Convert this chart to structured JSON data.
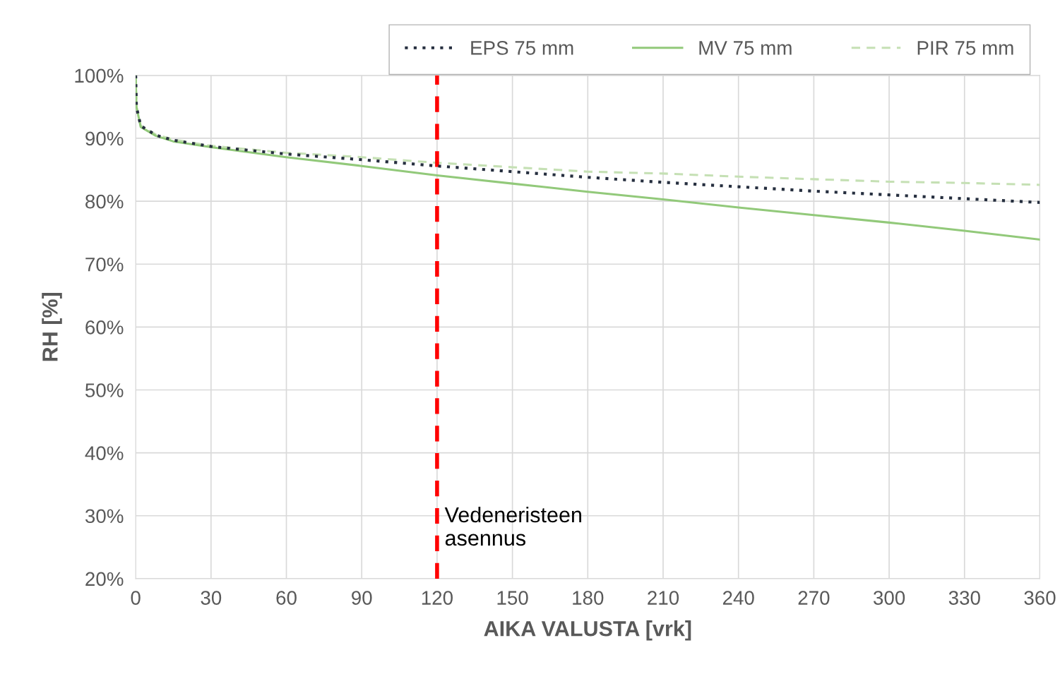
{
  "chart_data": {
    "type": "line",
    "xlabel": "AIKA VALUSTA [vrk]",
    "ylabel": "RH [%]",
    "x": [
      0,
      0.3,
      2,
      8,
      15,
      30,
      60,
      90,
      120,
      150,
      180,
      210,
      240,
      270,
      300,
      330,
      360
    ],
    "series": [
      {
        "name": "EPS 75 mm",
        "color": "#262f3f",
        "line_style": "dotted",
        "values": [
          100,
          95,
          92,
          90.5,
          89.7,
          88.7,
          87.5,
          86.6,
          85.6,
          84.7,
          83.8,
          83.0,
          82.3,
          81.6,
          81.0,
          80.4,
          79.8
        ]
      },
      {
        "name": "MV 75 mm",
        "color": "#92c97a",
        "line_style": "solid",
        "values": [
          100,
          95,
          91.8,
          90.4,
          89.5,
          88.6,
          87.0,
          85.6,
          84.1,
          82.8,
          81.5,
          80.3,
          79.0,
          77.8,
          76.6,
          75.3,
          73.9
        ]
      },
      {
        "name": "PIR 75 mm",
        "color": "#c5e0b4",
        "line_style": "dashed",
        "values": [
          100,
          95,
          92,
          90.6,
          89.8,
          88.8,
          87.7,
          87.0,
          86.1,
          85.4,
          84.7,
          84.4,
          83.9,
          83.5,
          83.1,
          82.9,
          82.6
        ]
      }
    ],
    "xlim": [
      0,
      360
    ],
    "xticks": [
      0,
      30,
      60,
      90,
      120,
      150,
      180,
      210,
      240,
      270,
      300,
      330,
      360
    ],
    "ylim": [
      20,
      100
    ],
    "yticks": [
      {
        "value": 20,
        "label": "20%"
      },
      {
        "value": 30,
        "label": "30%"
      },
      {
        "value": 40,
        "label": "40%"
      },
      {
        "value": 50,
        "label": "50%"
      },
      {
        "value": 60,
        "label": "60%"
      },
      {
        "value": 70,
        "label": "70%"
      },
      {
        "value": 80,
        "label": "80%"
      },
      {
        "value": 90,
        "label": "90%"
      },
      {
        "value": 100,
        "label": "100%"
      }
    ],
    "ref_lines": [
      {
        "axis": "x",
        "value": 120,
        "label": "Vedeneristeen\nasennus",
        "color": "#ff0000",
        "line_style": "dashed"
      }
    ],
    "grid": true,
    "legend": "top right",
    "marker": "none"
  }
}
